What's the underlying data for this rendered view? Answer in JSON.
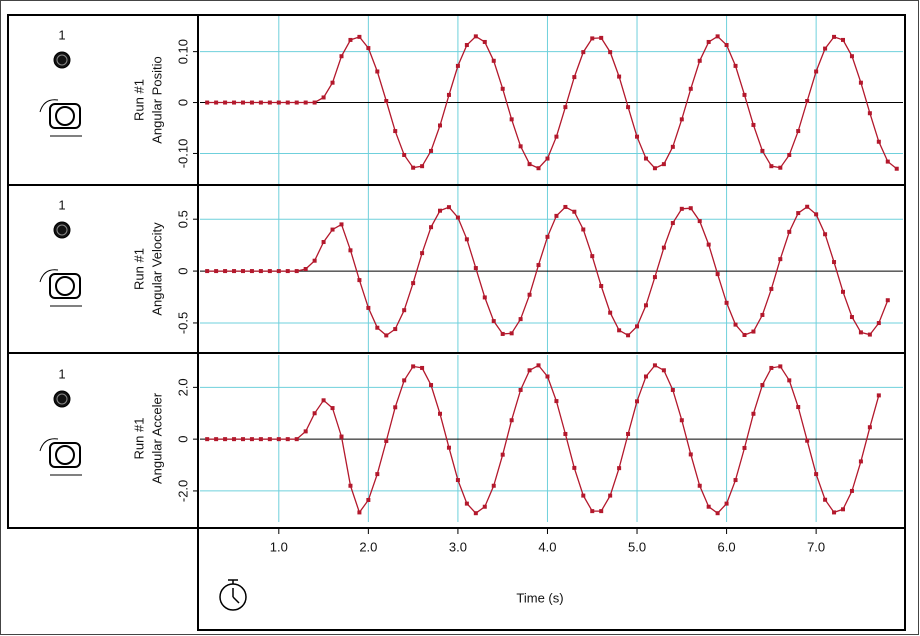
{
  "chart_data": [
    {
      "type": "line",
      "channel": "1",
      "run": "Run #1",
      "ylabel": "Angular Positio",
      "x": [
        0.2,
        0.3,
        0.4,
        0.5,
        0.6,
        0.7,
        0.8,
        0.9,
        1.0,
        1.1,
        1.2,
        1.3,
        1.4,
        1.5,
        1.6,
        1.7,
        1.8,
        1.9,
        2.0,
        2.1,
        2.2,
        2.3,
        2.4,
        2.5,
        2.6,
        2.7,
        2.8,
        2.9,
        3.0,
        3.1,
        3.2,
        3.3,
        3.4,
        3.5,
        3.6,
        3.7,
        3.8,
        3.9,
        4.0,
        4.1,
        4.2,
        4.3,
        4.4,
        4.5,
        4.6,
        4.7,
        4.8,
        4.9,
        5.0,
        5.1,
        5.2,
        5.3,
        5.4,
        5.5,
        5.6,
        5.7,
        5.8,
        5.9,
        6.0,
        6.1,
        6.2,
        6.3,
        6.4,
        6.5,
        6.6,
        6.7,
        6.8,
        6.9,
        7.0,
        7.1,
        7.2,
        7.3,
        7.4,
        7.5,
        7.6,
        7.7,
        7.8,
        7.9
      ],
      "series": [
        {
          "color": "#b3182c",
          "values": [
            0,
            0,
            0,
            0,
            0,
            0,
            0,
            0,
            0,
            0,
            0,
            0,
            0,
            0.01,
            0.039,
            0.091,
            0.123,
            0.129,
            0.107,
            0.061,
            0.003,
            -0.056,
            -0.103,
            -0.128,
            -0.125,
            -0.095,
            -0.045,
            0.015,
            0.072,
            0.113,
            0.13,
            0.119,
            0.082,
            0.027,
            -0.033,
            -0.086,
            -0.121,
            -0.129,
            -0.11,
            -0.067,
            -0.009,
            0.05,
            0.099,
            0.126,
            0.127,
            0.099,
            0.051,
            -0.009,
            -0.067,
            -0.11,
            -0.129,
            -0.121,
            -0.087,
            -0.033,
            0.027,
            0.082,
            0.119,
            0.13,
            0.113,
            0.072,
            0.015,
            -0.044,
            -0.095,
            -0.125,
            -0.128,
            -0.103,
            -0.056,
            0.003,
            0.061,
            0.106,
            0.129,
            0.123,
            0.091,
            0.039,
            -0.021,
            -0.077,
            -0.116,
            -0.13
          ]
        }
      ],
      "xlim": [
        0.12,
        7.97
      ],
      "xticks": [
        {
          "value": 1,
          "label": "1.0"
        },
        {
          "value": 2,
          "label": "2.0"
        },
        {
          "value": 3,
          "label": "3.0"
        },
        {
          "value": 4,
          "label": "4.0"
        },
        {
          "value": 5,
          "label": "5.0"
        },
        {
          "value": 6,
          "label": "6.0"
        },
        {
          "value": 7,
          "label": "7.0"
        }
      ],
      "ylim": [
        -0.16,
        0.17
      ],
      "yticks": [
        {
          "value": -0.1,
          "label": "-0.10"
        },
        0,
        {
          "value": 0.1,
          "label": "0.10"
        }
      ],
      "grid": true
    },
    {
      "type": "line",
      "channel": "1",
      "run": "Run #1",
      "ylabel": "Angular Velocity",
      "x": [
        0.2,
        0.3,
        0.4,
        0.5,
        0.6,
        0.7,
        0.8,
        0.9,
        1.0,
        1.1,
        1.2,
        1.3,
        1.4,
        1.5,
        1.6,
        1.7,
        1.8,
        1.9,
        2.0,
        2.1,
        2.2,
        2.3,
        2.4,
        2.5,
        2.6,
        2.7,
        2.8,
        2.9,
        3.0,
        3.1,
        3.2,
        3.3,
        3.4,
        3.5,
        3.6,
        3.7,
        3.8,
        3.9,
        4.0,
        4.1,
        4.2,
        4.3,
        4.4,
        4.5,
        4.6,
        4.7,
        4.8,
        4.9,
        5.0,
        5.1,
        5.2,
        5.3,
        5.4,
        5.5,
        5.6,
        5.7,
        5.8,
        5.9,
        6.0,
        6.1,
        6.2,
        6.3,
        6.4,
        6.5,
        6.6,
        6.7,
        6.8,
        6.9,
        7.0,
        7.1,
        7.2,
        7.3,
        7.4,
        7.5,
        7.6,
        7.7,
        7.8
      ],
      "series": [
        {
          "color": "#b3182c",
          "values": [
            0,
            0,
            0,
            0,
            0,
            0,
            0,
            0,
            0,
            0,
            0,
            0.02,
            0.1,
            0.28,
            0.4,
            0.45,
            0.2,
            -0.087,
            -0.355,
            -0.546,
            -0.62,
            -0.559,
            -0.377,
            -0.116,
            0.173,
            0.423,
            0.582,
            0.616,
            0.516,
            0.306,
            0.029,
            -0.254,
            -0.482,
            -0.606,
            -0.6,
            -0.463,
            -0.228,
            0.058,
            0.33,
            0.532,
            0.618,
            0.572,
            0.401,
            0.144,
            -0.144,
            -0.401,
            -0.571,
            -0.619,
            -0.533,
            -0.33,
            -0.058,
            0.226,
            0.463,
            0.6,
            0.606,
            0.482,
            0.255,
            -0.029,
            -0.306,
            -0.516,
            -0.616,
            -0.583,
            -0.423,
            -0.172,
            0.115,
            0.378,
            0.559,
            0.62,
            0.547,
            0.355,
            0.087,
            -0.2,
            -0.443,
            -0.591,
            -0.612,
            -0.501,
            -0.281
          ]
        }
      ],
      "xlim": [
        0.12,
        7.97
      ],
      "xticks": [
        {
          "value": 1,
          "label": "1.0"
        },
        {
          "value": 2,
          "label": "2.0"
        },
        {
          "value": 3,
          "label": "3.0"
        },
        {
          "value": 4,
          "label": "4.0"
        },
        {
          "value": 5,
          "label": "5.0"
        },
        {
          "value": 6,
          "label": "6.0"
        },
        {
          "value": 7,
          "label": "7.0"
        }
      ],
      "ylim": [
        -0.78,
        0.82
      ],
      "yticks": [
        -0.5,
        0,
        0.5
      ],
      "grid": true
    },
    {
      "type": "line",
      "channel": "1",
      "run": "Run #1",
      "ylabel": "Angular Acceler",
      "xlabel": "Time (s)",
      "x": [
        0.2,
        0.3,
        0.4,
        0.5,
        0.6,
        0.7,
        0.8,
        0.9,
        1.0,
        1.1,
        1.2,
        1.3,
        1.4,
        1.5,
        1.6,
        1.7,
        1.8,
        1.9,
        2.0,
        2.1,
        2.2,
        2.3,
        2.4,
        2.5,
        2.6,
        2.7,
        2.8,
        2.9,
        3.0,
        3.1,
        3.2,
        3.3,
        3.4,
        3.5,
        3.6,
        3.7,
        3.8,
        3.9,
        4.0,
        4.1,
        4.2,
        4.3,
        4.4,
        4.5,
        4.6,
        4.7,
        4.8,
        4.9,
        5.0,
        5.1,
        5.2,
        5.3,
        5.4,
        5.5,
        5.6,
        5.7,
        5.8,
        5.9,
        6.0,
        6.1,
        6.2,
        6.3,
        6.4,
        6.5,
        6.6,
        6.7,
        6.8,
        6.9,
        7.0,
        7.1,
        7.2,
        7.3,
        7.4,
        7.5,
        7.6,
        7.7
      ],
      "series": [
        {
          "color": "#b3182c",
          "values": [
            0,
            0,
            0,
            0,
            0,
            0,
            0,
            0,
            0,
            0,
            0,
            0.3,
            1.0,
            1.5,
            1.2,
            0.1,
            -1.8,
            -2.83,
            -2.35,
            -1.35,
            -0.07,
            1.23,
            2.27,
            2.81,
            2.75,
            2.09,
            0.98,
            -0.33,
            -1.58,
            -2.49,
            -2.86,
            -2.61,
            -1.8,
            -0.6,
            0.73,
            1.9,
            2.66,
            2.85,
            2.42,
            1.47,
            0.2,
            -1.11,
            -2.18,
            -2.78,
            -2.78,
            -2.18,
            -1.12,
            0.2,
            1.46,
            2.42,
            2.85,
            2.66,
            1.9,
            0.73,
            -0.59,
            -1.8,
            -2.61,
            -2.86,
            -2.49,
            -1.58,
            -0.34,
            0.98,
            2.09,
            2.75,
            2.81,
            2.27,
            1.24,
            -0.06,
            -1.35,
            -2.34,
            -2.83,
            -2.71,
            -2.0,
            -0.86,
            0.46,
            1.69
          ]
        }
      ],
      "xlim": [
        0.12,
        7.97
      ],
      "xticks": [
        {
          "value": 1,
          "label": "1.0"
        },
        {
          "value": 2,
          "label": "2.0"
        },
        {
          "value": 3,
          "label": "3.0"
        },
        {
          "value": 4,
          "label": "4.0"
        },
        {
          "value": 5,
          "label": "5.0"
        },
        {
          "value": 6,
          "label": "6.0"
        },
        {
          "value": 7,
          "label": "7.0"
        }
      ],
      "ylim": [
        -3.2,
        3.25
      ],
      "yticks": [
        {
          "value": -2,
          "label": "-2.0"
        },
        0,
        {
          "value": 2,
          "label": "2.0"
        }
      ],
      "grid": true
    }
  ]
}
